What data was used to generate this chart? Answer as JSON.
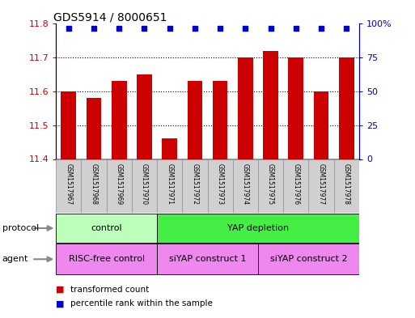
{
  "title": "GDS5914 / 8000651",
  "samples": [
    "GSM1517967",
    "GSM1517968",
    "GSM1517969",
    "GSM1517970",
    "GSM1517971",
    "GSM1517972",
    "GSM1517973",
    "GSM1517974",
    "GSM1517975",
    "GSM1517976",
    "GSM1517977",
    "GSM1517978"
  ],
  "transformed_counts": [
    11.6,
    11.58,
    11.63,
    11.65,
    11.46,
    11.63,
    11.63,
    11.7,
    11.72,
    11.7,
    11.6,
    11.7
  ],
  "percentile_ranks": [
    100,
    100,
    100,
    100,
    100,
    100,
    100,
    100,
    100,
    100,
    100,
    100
  ],
  "bar_color": "#cc0000",
  "dot_color": "#0000cc",
  "ylim_left": [
    11.4,
    11.8
  ],
  "ylim_right": [
    0,
    100
  ],
  "yticks_left": [
    11.4,
    11.5,
    11.6,
    11.7,
    11.8
  ],
  "yticks_right": [
    0,
    25,
    50,
    75,
    100
  ],
  "ytick_labels_right": [
    "0",
    "25",
    "50",
    "75",
    "100%"
  ],
  "protocol_groups": [
    {
      "label": "control",
      "start": 0,
      "end": 4,
      "color": "#bbffbb"
    },
    {
      "label": "YAP depletion",
      "start": 4,
      "end": 12,
      "color": "#44ee44"
    }
  ],
  "agent_groups": [
    {
      "label": "RISC-free control",
      "start": 0,
      "end": 4,
      "color": "#ee88ee"
    },
    {
      "label": "siYAP construct 1",
      "start": 4,
      "end": 8,
      "color": "#ee88ee"
    },
    {
      "label": "siYAP construct 2",
      "start": 8,
      "end": 12,
      "color": "#ee88ee"
    }
  ],
  "legend_items": [
    {
      "label": "transformed count",
      "color": "#cc0000"
    },
    {
      "label": "percentile rank within the sample",
      "color": "#0000cc"
    }
  ],
  "protocol_label": "protocol",
  "agent_label": "agent",
  "sample_box_color": "#d0d0d0",
  "sample_box_edge": "#999999",
  "bg_color": "#ffffff"
}
